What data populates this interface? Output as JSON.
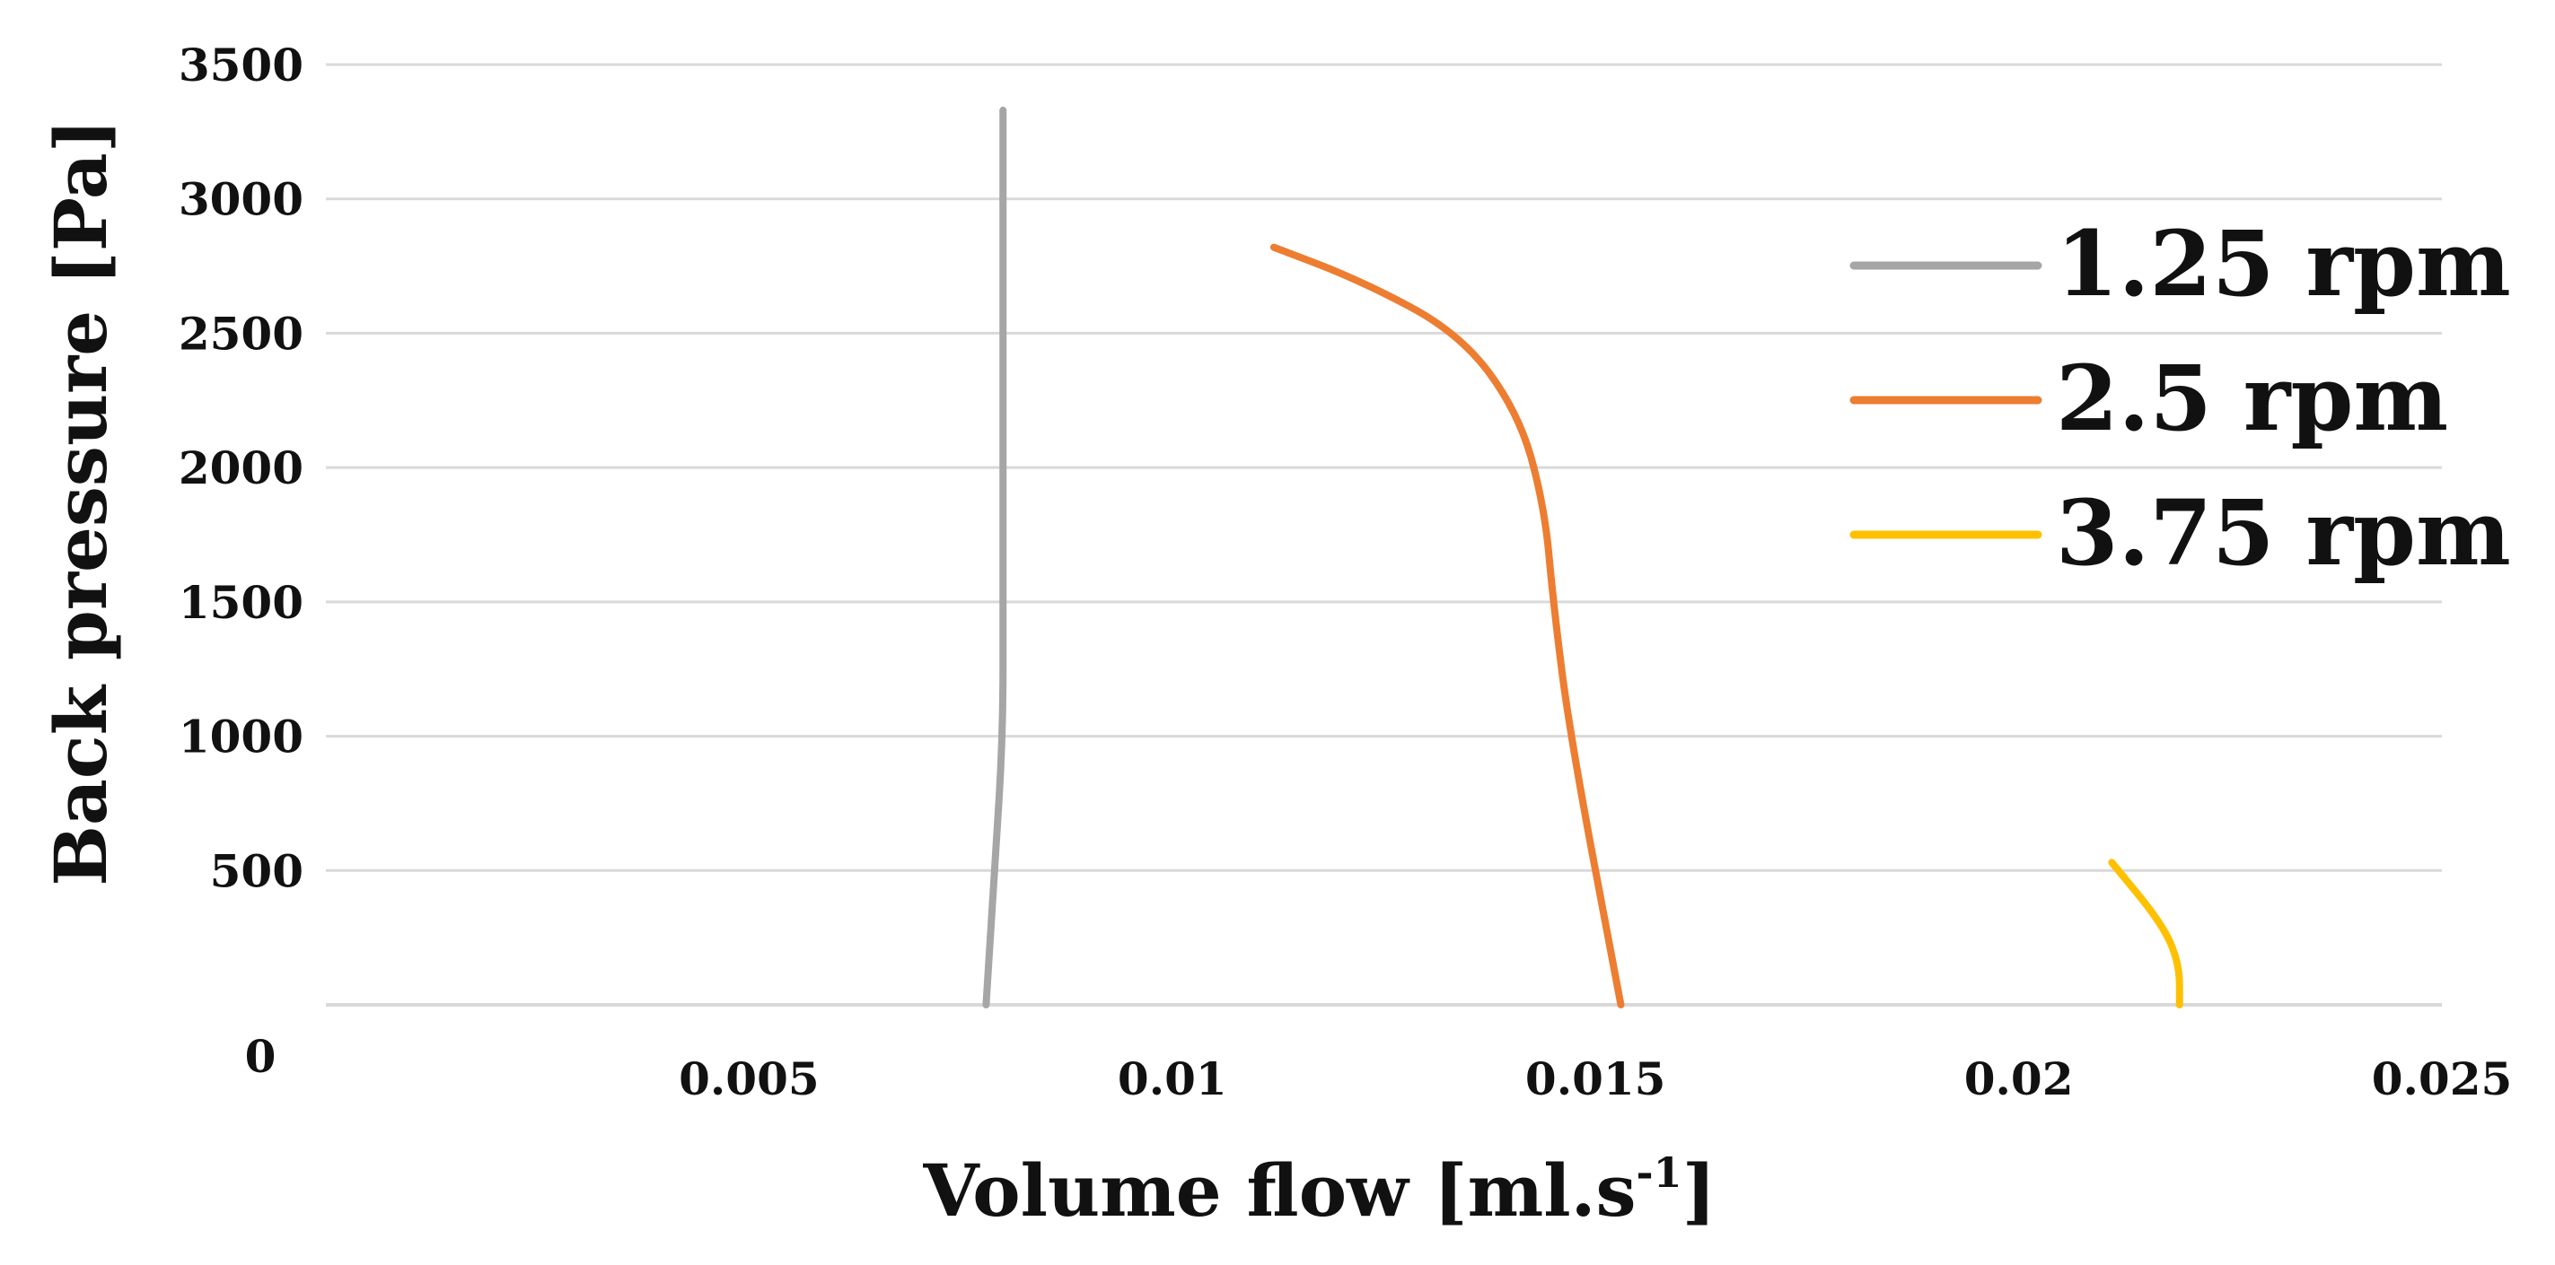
{
  "chart_data": {
    "type": "line",
    "xlabel": "Volume flow [ml.s",
    "xlabel_superscript": "-1",
    "xlabel_suffix": "]",
    "ylabel": "Back pressure [Pa]",
    "xlim": [
      0,
      0.025
    ],
    "ylim": [
      0,
      3500
    ],
    "x_ticks": [
      "0",
      "0.005",
      "0.01",
      "0.015",
      "0.02",
      "0.025"
    ],
    "x_tick_values": [
      0,
      0.005,
      0.01,
      0.015,
      0.02,
      0.025
    ],
    "y_ticks": [
      "500",
      "1000",
      "1500",
      "2000",
      "2500",
      "3000",
      "3500"
    ],
    "y_tick_values": [
      500,
      1000,
      1500,
      2000,
      2500,
      3000,
      3500
    ],
    "grid": true,
    "legend_position": "top-right",
    "series": [
      {
        "name": "1.25 rpm",
        "color": "#a6a6a6",
        "x": [
          0.0078,
          0.0079,
          0.008,
          0.008,
          0.008,
          0.008,
          0.008,
          0.008,
          0.008
        ],
        "y": [
          0,
          500,
          1000,
          1500,
          2000,
          2500,
          2800,
          3100,
          3330
        ]
      },
      {
        "name": "2.5 rpm",
        "color": "#ed7d31",
        "x": [
          0.0153,
          0.0147,
          0.0145,
          0.0144,
          0.0141,
          0.0134,
          0.0122,
          0.0112
        ],
        "y": [
          0,
          1000,
          1500,
          1850,
          2200,
          2500,
          2700,
          2820
        ]
      },
      {
        "name": "3.75 rpm",
        "color": "#ffc000",
        "x": [
          0.0219,
          0.0219,
          0.0217,
          0.0211
        ],
        "y": [
          0,
          150,
          300,
          530
        ]
      }
    ]
  }
}
